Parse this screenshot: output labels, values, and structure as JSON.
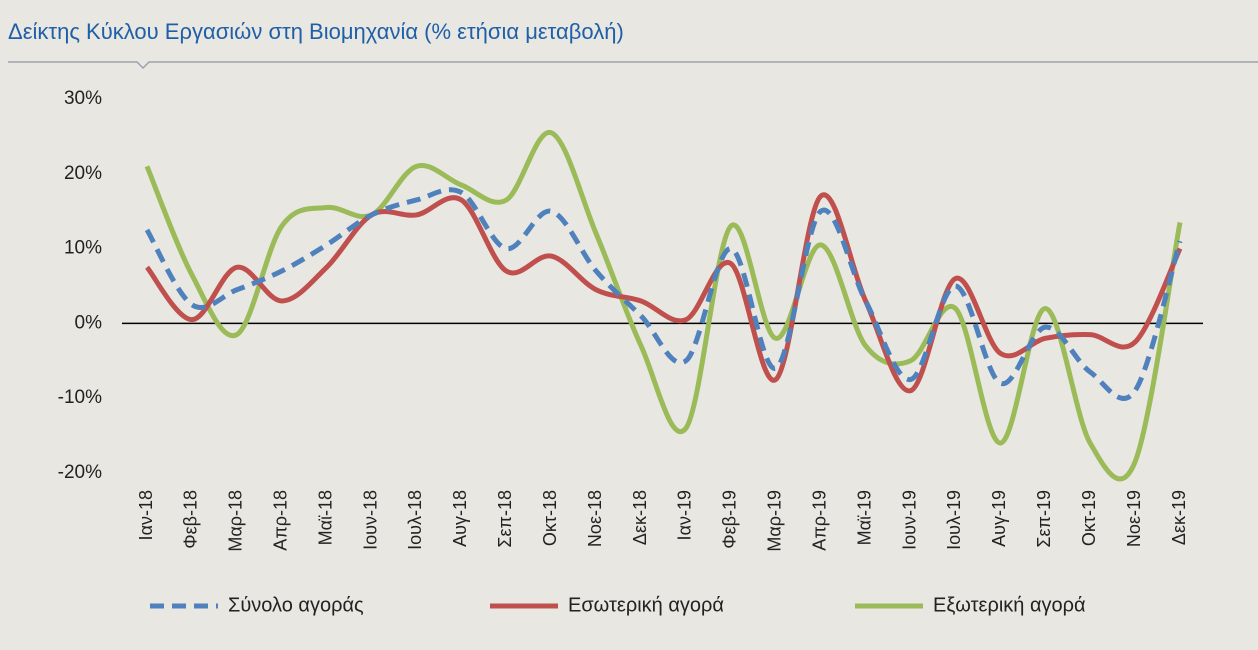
{
  "chart_data": {
    "type": "line",
    "title": "Δείκτης Κύκλου Εργασιών στη Βιομηχανία (% ετήσια μεταβολή)",
    "categories": [
      "Ιαν-18",
      "Φεβ-18",
      "Μαρ-18",
      "Απρ-18",
      "Μαϊ-18",
      "Ιουν-18",
      "Ιουλ-18",
      "Αυγ-18",
      "Σεπ-18",
      "Οκτ-18",
      "Νοε-18",
      "Δεκ-18",
      "Ιαν-19",
      "Φεβ-19",
      "Μαρ-19",
      "Απρ-19",
      "Μαϊ-19",
      "Ιουν-19",
      "Ιουλ-19",
      "Αυγ-19",
      "Σεπ-19",
      "Οκτ-19",
      "Νοε-19",
      "Δεκ-19"
    ],
    "series": [
      {
        "name": "Σύνολο αγοράς",
        "color": "#4f81bd",
        "dashed": true,
        "values": [
          12.5,
          2.5,
          4.5,
          7,
          10.5,
          14.5,
          16.5,
          17.5,
          10,
          15,
          7,
          1,
          -5,
          10,
          -6,
          15,
          3,
          -7.5,
          5,
          -8,
          -0.5,
          -6.5,
          -9,
          11
        ]
      },
      {
        "name": "Εσωτερική αγορά",
        "color": "#c0504d",
        "dashed": false,
        "values": [
          7.5,
          0.5,
          7.5,
          3,
          7.5,
          14.5,
          14.5,
          16.5,
          7,
          9,
          4.5,
          3,
          0.5,
          8,
          -7.5,
          17,
          3,
          -9,
          6,
          -4,
          -2,
          -1.5,
          -2.5,
          10
        ]
      },
      {
        "name": "Εξωτερική αγορά",
        "color": "#9bbb59",
        "dashed": false,
        "values": [
          21,
          6.5,
          -1.5,
          13,
          15.5,
          14.5,
          21,
          18.5,
          16.5,
          25.5,
          12,
          -3,
          -14,
          13,
          -2,
          10.5,
          -3,
          -5,
          2,
          -16,
          2,
          -16,
          -18.5,
          13.5
        ]
      }
    ],
    "ylim": [
      -20,
      30
    ],
    "yticks": [
      {
        "value": -20,
        "label": "-20%"
      },
      {
        "value": -10,
        "label": "-10%"
      },
      {
        "value": 0,
        "label": "0%"
      },
      {
        "value": 10,
        "label": "10%"
      },
      {
        "value": 20,
        "label": "20%"
      },
      {
        "value": 30,
        "label": "30%"
      }
    ],
    "grid": false,
    "zero_line": true,
    "legend": "bottom",
    "title_color": "#1f5fa8"
  }
}
